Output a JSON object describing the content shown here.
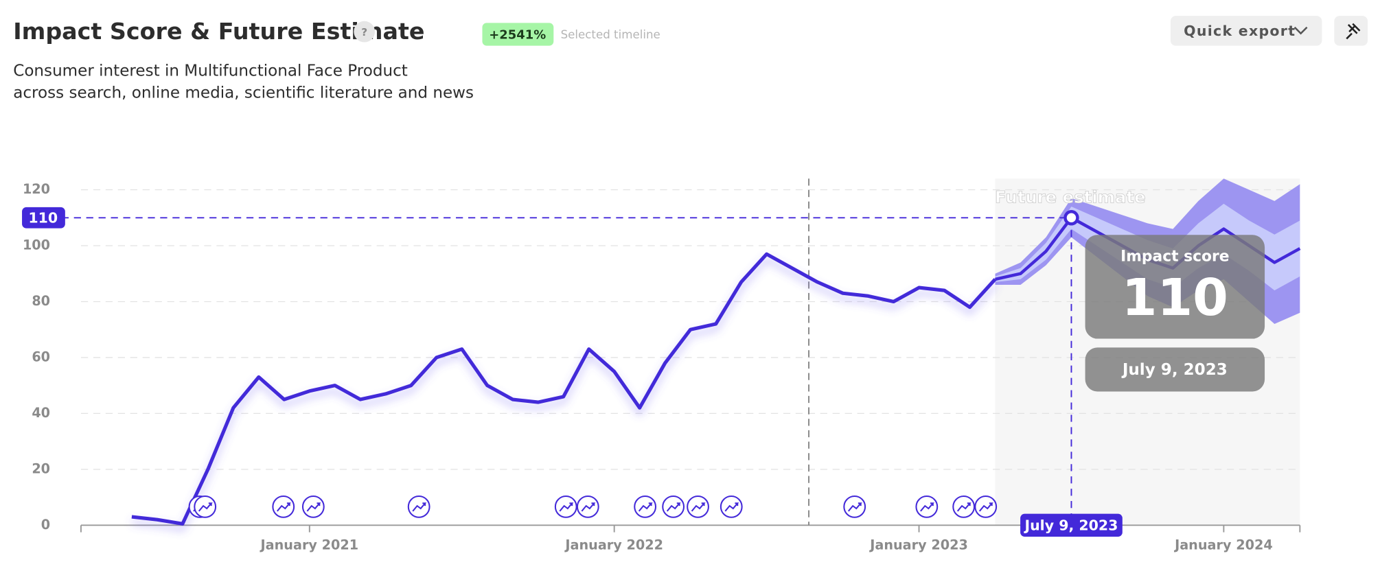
{
  "header": {
    "title": "Impact Score & Future Estimate",
    "help": "?",
    "change": "+2541%",
    "change_label": "Selected timeline",
    "subtitle": [
      "Consumer interest in Multifunctional Face Product",
      "across search, online media, scientific literature and news"
    ],
    "export": "Quick export"
  },
  "chart_data": {
    "type": "line",
    "x": [
      "2020-06",
      "2020-07",
      "2020-08",
      "2020-09",
      "2020-10",
      "2020-11",
      "2020-12",
      "2021-01",
      "2021-02",
      "2021-03",
      "2021-04",
      "2021-05",
      "2021-06",
      "2021-07",
      "2021-08",
      "2021-09",
      "2021-10",
      "2021-11",
      "2021-12",
      "2022-01",
      "2022-02",
      "2022-03",
      "2022-04",
      "2022-05",
      "2022-06",
      "2022-07",
      "2022-08",
      "2022-09",
      "2022-10",
      "2022-11",
      "2022-12",
      "2023-01",
      "2023-02",
      "2023-03",
      "2023-04"
    ],
    "series": [
      {
        "name": "Impact score",
        "color": "#4329d9",
        "values": [
          3,
          2,
          0.5,
          20,
          42,
          53,
          45,
          48,
          50,
          45,
          47,
          50,
          60,
          63,
          50,
          45,
          44,
          46,
          63,
          55,
          42,
          58,
          70,
          72,
          87,
          97,
          92,
          87,
          83,
          82,
          80,
          85,
          84,
          78,
          88
        ]
      }
    ],
    "forecast": {
      "label": "Future estimate",
      "color": "#4329d9",
      "inner_color": "#c6c9fb",
      "outer_color": "#9d95f1",
      "x": [
        "2023-04",
        "2023-05",
        "2023-06",
        "2023-07",
        "2023-08",
        "2023-09",
        "2023-10",
        "2023-11",
        "2023-12",
        "2024-01",
        "2024-02",
        "2024-03",
        "2024-04"
      ],
      "values": [
        88,
        90,
        98,
        110,
        105,
        100,
        95,
        92,
        100,
        106,
        100,
        94,
        99
      ],
      "inner_lower": [
        87,
        88,
        95,
        106,
        100,
        94,
        88,
        85,
        92,
        97,
        91,
        84,
        89
      ],
      "inner_upper": [
        89,
        92,
        101,
        114,
        110,
        106,
        102,
        99,
        108,
        115,
        109,
        104,
        109
      ],
      "outer_lower": [
        86,
        86,
        93,
        103,
        96,
        89,
        82,
        78,
        84,
        88,
        80,
        72,
        76
      ],
      "outer_upper": [
        90,
        94,
        103,
        117,
        114,
        111,
        108,
        106,
        116,
        124,
        120,
        116,
        122
      ]
    },
    "highlight": {
      "x": "2023-07",
      "value": 110,
      "date_label": "July 9, 2023"
    },
    "xlim": [
      "2020-04",
      "2024-04"
    ],
    "xticks": [
      {
        "value": "2021-01",
        "label": "January 2021"
      },
      {
        "value": "2022-01",
        "label": "January 2022"
      },
      {
        "value": "2023-01",
        "label": "January 2023"
      },
      {
        "value": "2024-01",
        "label": "January 2024"
      }
    ],
    "ylim": [
      0,
      124
    ],
    "yticks": [
      0,
      20,
      40,
      60,
      80,
      100,
      120
    ],
    "grid": true
  }
}
